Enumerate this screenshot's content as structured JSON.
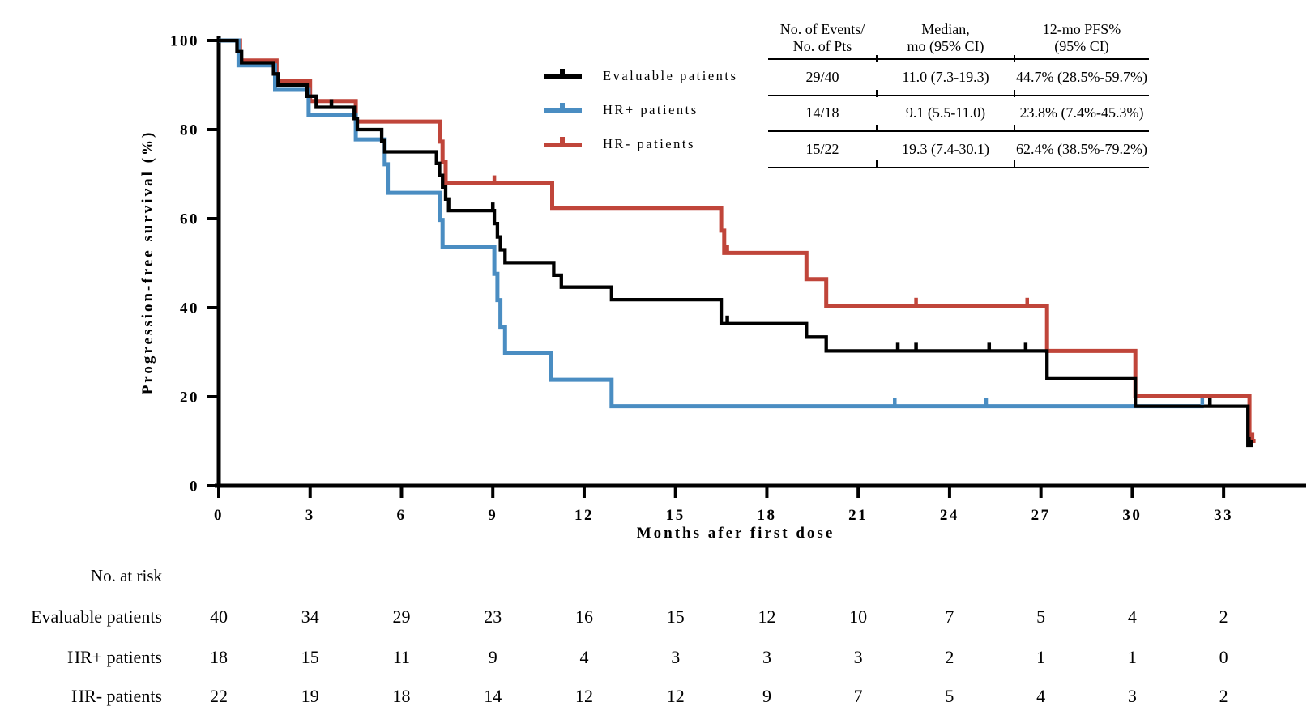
{
  "chart_data": {
    "type": "line",
    "subtype": "kaplan-meier-step",
    "title": "",
    "xlabel": "Months afer first dose",
    "ylabel": "Progression-free survival (%)",
    "xlim": [
      0,
      35.5
    ],
    "ylim": [
      0,
      100
    ],
    "x_ticks": [
      0,
      3,
      6,
      9,
      12,
      15,
      18,
      21,
      24,
      27,
      30,
      33
    ],
    "y_ticks": [
      0,
      20,
      40,
      60,
      80,
      100
    ],
    "grid": "off",
    "legend_position": "upper-center-left",
    "series": [
      {
        "name": "Evaluable patients",
        "color": "#000000",
        "stroke_width": 4.3,
        "steps": [
          [
            0,
            100
          ],
          [
            0.6,
            100
          ],
          [
            0.6,
            97.5
          ],
          [
            0.75,
            97.5
          ],
          [
            0.75,
            95
          ],
          [
            1.8,
            95
          ],
          [
            1.8,
            92.5
          ],
          [
            1.95,
            92.5
          ],
          [
            1.95,
            90
          ],
          [
            2.9,
            90
          ],
          [
            2.9,
            87.5
          ],
          [
            3.2,
            87.5
          ],
          [
            3.2,
            85
          ],
          [
            4.45,
            85
          ],
          [
            4.45,
            82.5
          ],
          [
            4.55,
            82.5
          ],
          [
            4.55,
            80
          ],
          [
            5.35,
            80
          ],
          [
            5.35,
            77.5
          ],
          [
            5.45,
            77.5
          ],
          [
            5.45,
            75
          ],
          [
            7.15,
            75
          ],
          [
            7.15,
            72.4
          ],
          [
            7.25,
            72.4
          ],
          [
            7.25,
            69.7
          ],
          [
            7.35,
            69.7
          ],
          [
            7.35,
            67.1
          ],
          [
            7.45,
            67.1
          ],
          [
            7.45,
            64.4
          ],
          [
            7.55,
            64.4
          ],
          [
            7.55,
            61.8
          ],
          [
            9.05,
            61.8
          ],
          [
            9.05,
            58.9
          ],
          [
            9.15,
            58.9
          ],
          [
            9.15,
            55.9
          ],
          [
            9.25,
            55.9
          ],
          [
            9.25,
            53
          ],
          [
            9.4,
            53
          ],
          [
            9.4,
            50.1
          ],
          [
            11,
            50.1
          ],
          [
            11,
            47.3
          ],
          [
            11.25,
            47.3
          ],
          [
            11.25,
            44.6
          ],
          [
            12.9,
            44.6
          ],
          [
            12.9,
            41.8
          ],
          [
            16.5,
            41.8
          ],
          [
            16.5,
            36.4
          ],
          [
            19.3,
            36.4
          ],
          [
            19.3,
            33.4
          ],
          [
            19.95,
            33.4
          ],
          [
            19.95,
            30.3
          ],
          [
            27.2,
            30.3
          ],
          [
            27.2,
            24.2
          ],
          [
            30.1,
            24.2
          ],
          [
            30.1,
            17.9
          ],
          [
            33.8,
            17.9
          ],
          [
            33.8,
            9.1
          ],
          [
            33.97,
            9.1
          ]
        ],
        "censor_marks": [
          3.7,
          9.0,
          16.7,
          22.3,
          22.9,
          25.3,
          26.5,
          32.55,
          33.9
        ]
      },
      {
        "name": "HR+ patients",
        "color": "#4a8dc2",
        "stroke_width": 5,
        "steps": [
          [
            0,
            100
          ],
          [
            0.65,
            100
          ],
          [
            0.65,
            94.4
          ],
          [
            1.85,
            94.4
          ],
          [
            1.85,
            88.9
          ],
          [
            2.95,
            88.9
          ],
          [
            2.95,
            83.3
          ],
          [
            4.5,
            83.3
          ],
          [
            4.5,
            77.8
          ],
          [
            5.45,
            77.8
          ],
          [
            5.45,
            72.2
          ],
          [
            5.55,
            72.2
          ],
          [
            5.55,
            65.8
          ],
          [
            7.25,
            65.8
          ],
          [
            7.25,
            59.7
          ],
          [
            7.35,
            59.7
          ],
          [
            7.35,
            53.6
          ],
          [
            9.05,
            53.6
          ],
          [
            9.05,
            47.6
          ],
          [
            9.15,
            47.6
          ],
          [
            9.15,
            41.7
          ],
          [
            9.25,
            41.7
          ],
          [
            9.25,
            35.7
          ],
          [
            9.4,
            35.7
          ],
          [
            9.4,
            29.8
          ],
          [
            10.9,
            29.8
          ],
          [
            10.9,
            23.8
          ],
          [
            12.9,
            23.8
          ],
          [
            12.9,
            17.9
          ],
          [
            32.35,
            17.9
          ]
        ],
        "censor_marks": [
          22.2,
          25.2,
          32.3
        ]
      },
      {
        "name": "HR- patients",
        "color": "#c0453a",
        "stroke_width": 5,
        "steps": [
          [
            0,
            100
          ],
          [
            0.7,
            100
          ],
          [
            0.7,
            95.5
          ],
          [
            1.9,
            95.5
          ],
          [
            1.9,
            90.9
          ],
          [
            3,
            90.9
          ],
          [
            3,
            86.4
          ],
          [
            4.5,
            86.4
          ],
          [
            4.5,
            81.8
          ],
          [
            7.25,
            81.8
          ],
          [
            7.25,
            77.3
          ],
          [
            7.35,
            77.3
          ],
          [
            7.35,
            72.7
          ],
          [
            7.45,
            72.7
          ],
          [
            7.45,
            67.9
          ],
          [
            10.95,
            67.9
          ],
          [
            10.95,
            62.4
          ],
          [
            16.5,
            62.4
          ],
          [
            16.5,
            57.3
          ],
          [
            16.6,
            57.3
          ],
          [
            16.6,
            52.3
          ],
          [
            19.3,
            52.3
          ],
          [
            19.3,
            46.4
          ],
          [
            19.95,
            46.4
          ],
          [
            19.95,
            40.4
          ],
          [
            27.2,
            40.4
          ],
          [
            27.2,
            30.3
          ],
          [
            30.1,
            30.3
          ],
          [
            30.1,
            20.2
          ],
          [
            33.85,
            20.2
          ],
          [
            33.85,
            10.1
          ],
          [
            34.05,
            10.1
          ]
        ],
        "censor_marks": [
          9.05,
          16.7,
          22.9,
          26.55,
          33.95
        ]
      }
    ]
  },
  "stats_table": {
    "headers": [
      [
        "No. of Events/",
        "No. of Pts"
      ],
      [
        "Median,",
        "mo (95% CI)"
      ],
      [
        "12-mo PFS%",
        "(95% CI)"
      ]
    ],
    "rows": [
      [
        "29/40",
        "11.0 (7.3-19.3)",
        "44.7% (28.5%-59.7%)"
      ],
      [
        "14/18",
        "9.1 (5.5-11.0)",
        "23.8% (7.4%-45.3%)"
      ],
      [
        "15/22",
        "19.3 (7.4-30.1)",
        "62.4% (38.5%-79.2%)"
      ]
    ]
  },
  "risk_table": {
    "title": "No. at risk",
    "time_points": [
      0,
      3,
      6,
      9,
      12,
      15,
      18,
      21,
      24,
      27,
      30,
      33
    ],
    "rows": [
      {
        "label": "Evaluable patients",
        "values": [
          40,
          34,
          29,
          23,
          16,
          15,
          12,
          10,
          7,
          5,
          4,
          2
        ]
      },
      {
        "label": "HR+ patients",
        "values": [
          18,
          15,
          11,
          9,
          4,
          3,
          3,
          3,
          2,
          1,
          1,
          0
        ]
      },
      {
        "label": "HR- patients",
        "values": [
          22,
          19,
          18,
          14,
          12,
          12,
          9,
          7,
          5,
          4,
          3,
          2
        ]
      }
    ]
  }
}
